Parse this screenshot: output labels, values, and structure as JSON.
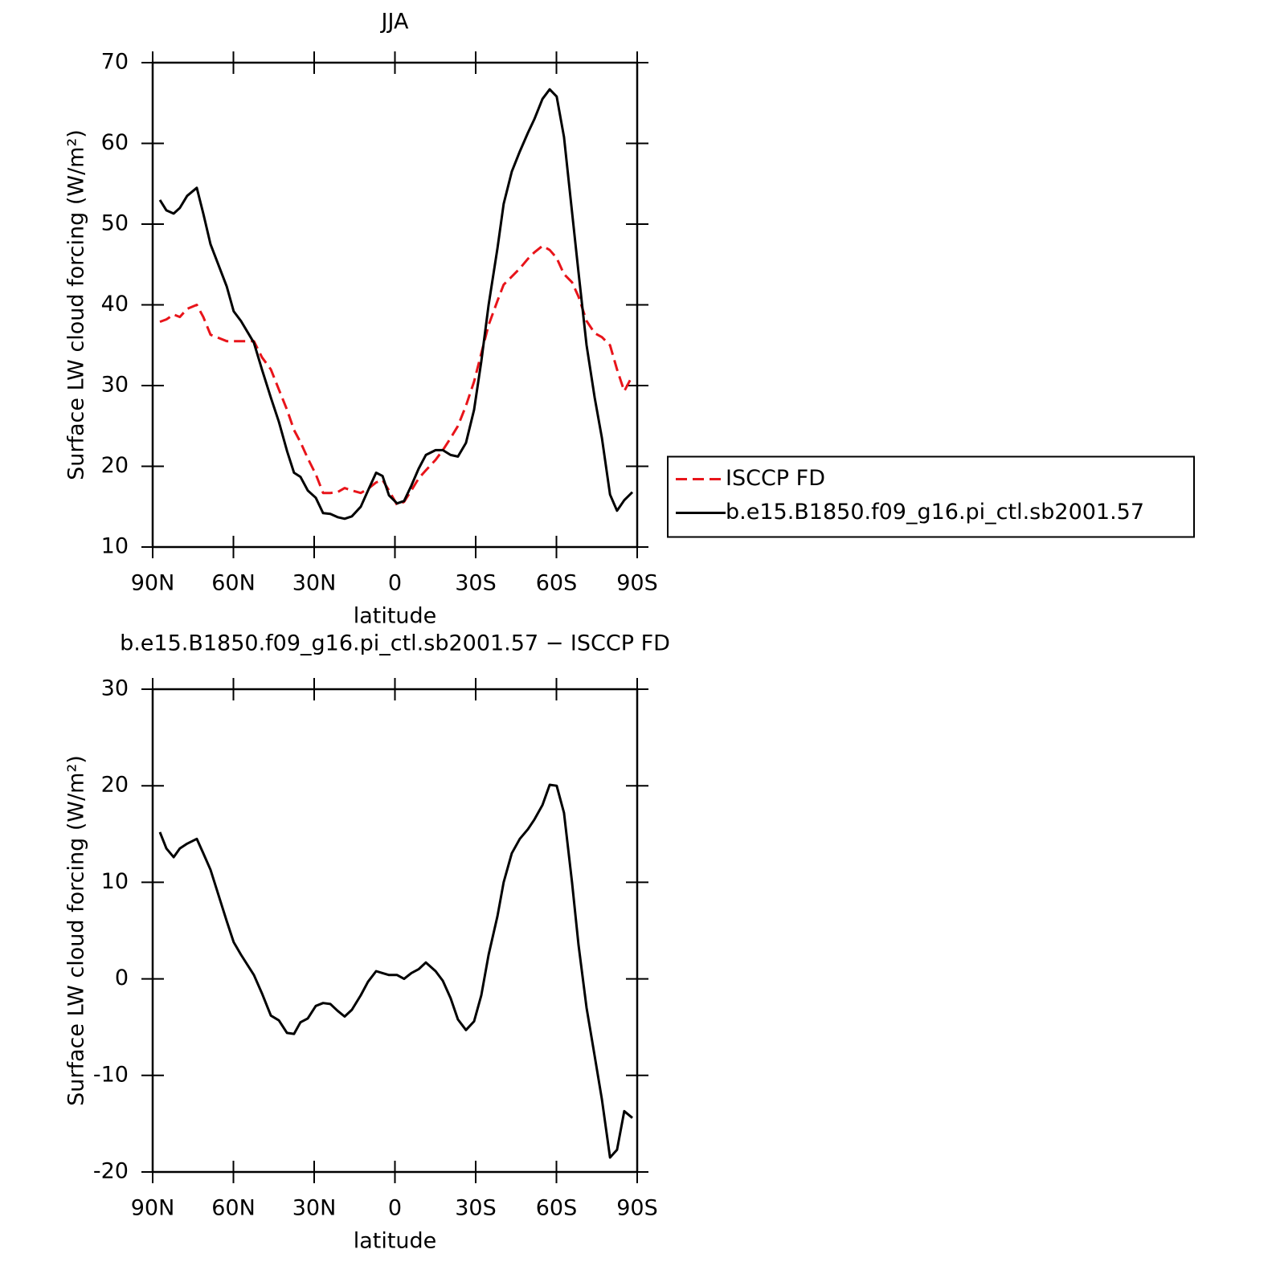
{
  "chart_data": [
    {
      "type": "line",
      "title": "JJA",
      "x_label": "latitude",
      "y_label": "Surface LW cloud forcing (W/m²)",
      "xlim": [
        90,
        -90
      ],
      "ylim": [
        10,
        70
      ],
      "xticks": [
        {
          "value": 90,
          "label": "90N"
        },
        {
          "value": 60,
          "label": "60N"
        },
        {
          "value": 30,
          "label": "30N"
        },
        0,
        {
          "value": -30,
          "label": "30S"
        },
        {
          "value": -60,
          "label": "60S"
        },
        {
          "value": -90,
          "label": "90S"
        }
      ],
      "yticks": [
        10,
        20,
        30,
        40,
        50,
        60,
        70
      ],
      "legend": "right",
      "x": [
        87.3,
        84.9,
        82.2,
        79.9,
        77.2,
        73.6,
        71.2,
        68.5,
        62.5,
        59.9,
        57.2,
        52.4,
        49.4,
        46.1,
        43.1,
        40.1,
        37.5,
        35.1,
        32.4,
        29.4,
        26.7,
        24,
        21.3,
        18.7,
        16,
        12.7,
        10,
        7,
        4.6,
        2.2,
        -0.8,
        -3.4,
        -6.1,
        -8.8,
        -11.5,
        -15.1,
        -17.8,
        -20.7,
        -23.4,
        -26.4,
        -29.4,
        -32.1,
        -34.8,
        -38.1,
        -40.4,
        -43.4,
        -46.4,
        -49.4,
        -51.8,
        -54.8,
        -57.5,
        -60.1,
        -62.8,
        -65.8,
        -68.2,
        -71.2,
        -74.2,
        -76.9,
        -79.9,
        -82.5,
        -85.2,
        -88.2
      ],
      "series": [
        {
          "name": "ISCCP FD",
          "color": "#e8141a",
          "line_style": "dashed",
          "values": [
            37.9,
            38.2,
            38.8,
            38.5,
            39.5,
            40,
            38.5,
            36.3,
            35.5,
            35.5,
            35.5,
            35.5,
            33.5,
            32,
            29.5,
            27,
            24.5,
            23,
            21,
            19,
            16.7,
            16.7,
            16.8,
            17.3,
            17,
            16.7,
            17.2,
            18,
            18.3,
            17,
            15.2,
            15.6,
            17,
            18.5,
            19.5,
            20.8,
            22,
            23.5,
            25,
            27.5,
            30.5,
            34,
            37.5,
            40.5,
            42.5,
            43.5,
            44.5,
            45.7,
            46.5,
            47.3,
            46.8,
            45.8,
            43.8,
            42.8,
            41,
            38,
            36.5,
            36,
            35,
            32,
            29.3,
            31.2
          ]
        },
        {
          "name": "b.e15.B1850.f09_g16.pi_ctl.sb2001.57",
          "color": "#000000",
          "line_style": "solid",
          "values": [
            53,
            51.7,
            51.3,
            52,
            53.5,
            54.5,
            51.3,
            47.5,
            42.3,
            39.2,
            38,
            35.3,
            32,
            28.5,
            25.5,
            21.9,
            19.2,
            18.7,
            17,
            16.1,
            14.2,
            14.1,
            13.7,
            13.5,
            13.8,
            15,
            17,
            19.2,
            18.8,
            16.4,
            15.4,
            15.7,
            17.6,
            19.7,
            21.4,
            22,
            22,
            21.4,
            21.2,
            22.9,
            27,
            33,
            40,
            47,
            52.5,
            56.5,
            59,
            61.3,
            63,
            65.5,
            66.7,
            65.8,
            60.8,
            51.5,
            44,
            35,
            28.5,
            23.5,
            16.5,
            14.5,
            15.8,
            16.8
          ]
        }
      ]
    },
    {
      "type": "line",
      "title": "b.e15.B1850.f09_g16.pi_ctl.sb2001.57 − ISCCP FD",
      "x_label": "latitude",
      "y_label": "Surface LW cloud forcing (W/m²)",
      "xlim": [
        90,
        -90
      ],
      "ylim": [
        -20,
        30
      ],
      "xticks": [
        {
          "value": 90,
          "label": "90N"
        },
        {
          "value": 60,
          "label": "60N"
        },
        {
          "value": 30,
          "label": "30N"
        },
        0,
        {
          "value": -30,
          "label": "30S"
        },
        {
          "value": -60,
          "label": "60S"
        },
        {
          "value": -90,
          "label": "90S"
        }
      ],
      "yticks": [
        -20,
        -10,
        0,
        10,
        20,
        30
      ],
      "x": [
        87.3,
        84.9,
        82.2,
        79.9,
        77.2,
        73.6,
        71.2,
        68.5,
        62.5,
        59.9,
        57.2,
        52.4,
        49.4,
        46.1,
        43.1,
        40.1,
        37.5,
        35.1,
        32.4,
        29.4,
        26.7,
        24,
        21.3,
        18.7,
        16,
        12.7,
        10,
        7,
        4.6,
        2.2,
        -0.8,
        -3.4,
        -6.1,
        -8.8,
        -11.5,
        -15.1,
        -17.8,
        -20.7,
        -23.4,
        -26.4,
        -29.4,
        -32.1,
        -34.8,
        -38.1,
        -40.4,
        -43.4,
        -46.4,
        -49.4,
        -51.8,
        -54.8,
        -57.5,
        -60.1,
        -62.8,
        -65.8,
        -68.2,
        -71.2,
        -74.2,
        -76.9,
        -79.9,
        -82.5,
        -85.2,
        -88.2
      ],
      "series": [
        {
          "color": "#000000",
          "line_style": "solid",
          "values": [
            15.2,
            13.5,
            12.6,
            13.5,
            14,
            14.5,
            13,
            11.3,
            6,
            3.8,
            2.5,
            0.4,
            -1.5,
            -3.8,
            -4.3,
            -5.6,
            -5.7,
            -4.5,
            -4.1,
            -2.8,
            -2.5,
            -2.6,
            -3.3,
            -3.9,
            -3.2,
            -1.7,
            -0.3,
            0.8,
            0.6,
            0.4,
            0.4,
            0,
            0.6,
            1,
            1.7,
            0.8,
            -0.2,
            -2,
            -4.2,
            -5.3,
            -4.4,
            -1.7,
            2.5,
            6.5,
            10,
            13,
            14.5,
            15.5,
            16.5,
            18,
            20.1,
            20,
            17.2,
            10,
            3.5,
            -3,
            -8,
            -12.5,
            -18.5,
            -17.7,
            -13.7,
            -14.4
          ]
        }
      ]
    }
  ]
}
